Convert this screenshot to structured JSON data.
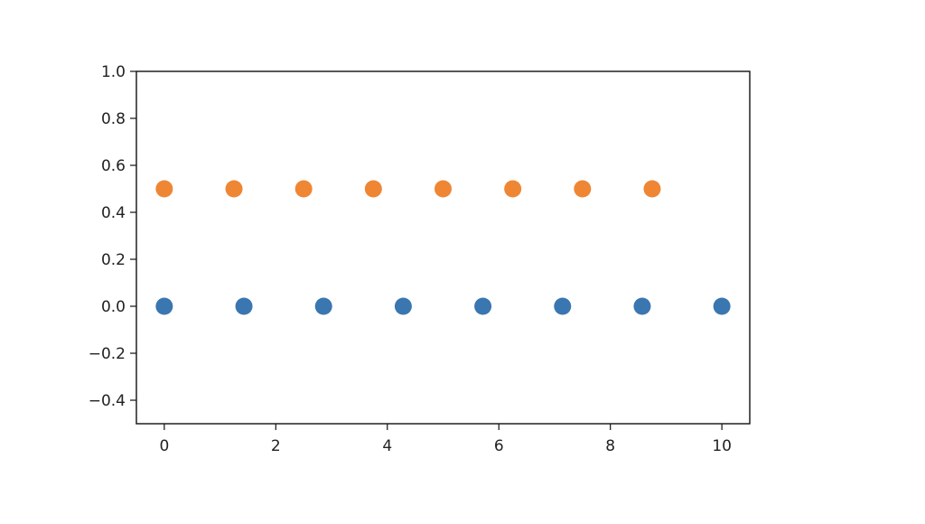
{
  "chart_data": {
    "type": "scatter",
    "title": "",
    "xlabel": "",
    "ylabel": "",
    "xlim": [
      -0.5,
      10.5
    ],
    "ylim": [
      -0.5,
      1.0
    ],
    "grid": false,
    "x_ticks": [
      0,
      2,
      4,
      6,
      8,
      10
    ],
    "x_tick_labels": [
      "0",
      "2",
      "4",
      "6",
      "8",
      "10"
    ],
    "y_ticks": [
      1.0,
      0.8,
      0.6,
      0.4,
      0.2,
      0.0,
      -0.2,
      -0.4
    ],
    "y_tick_labels": [
      "1.0",
      "0.8",
      "0.6",
      "0.4",
      "0.2",
      "0.0",
      "−0.2",
      "−0.4"
    ],
    "series": [
      {
        "color": "#3a76b0",
        "x": [
          0,
          1.4286,
          2.8571,
          4.2857,
          5.7143,
          7.1429,
          8.5714,
          10
        ],
        "y": [
          0,
          0,
          0,
          0,
          0,
          0,
          0,
          0
        ]
      },
      {
        "color": "#ef8634",
        "x": [
          0,
          1.25,
          2.5,
          3.75,
          5,
          6.25,
          7.5,
          8.75
        ],
        "y": [
          0.5,
          0.5,
          0.5,
          0.5,
          0.5,
          0.5,
          0.5,
          0.5
        ]
      }
    ]
  }
}
